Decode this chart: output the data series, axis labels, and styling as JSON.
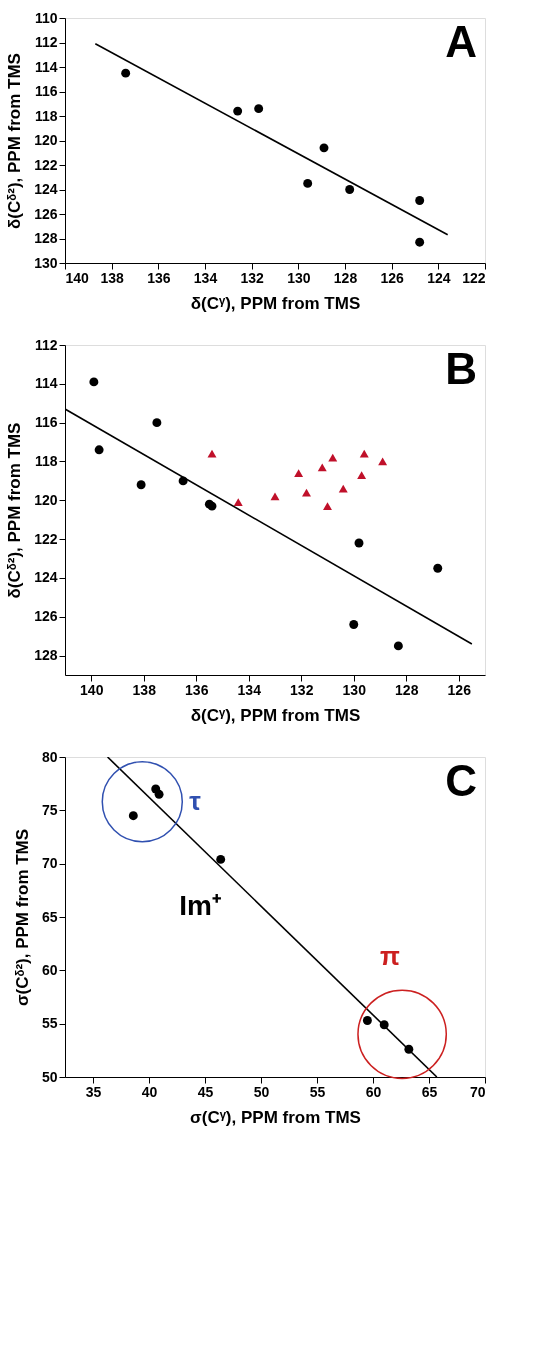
{
  "chart_data": [
    {
      "type": "scatter",
      "xlabel": "δ(Cᵞ), PPM from TMS",
      "ylabel": "δ(Cᵟ²), PPM from TMS",
      "xlim": [
        140,
        122
      ],
      "ylim": [
        130,
        110
      ],
      "xticks": [
        140,
        138,
        136,
        134,
        132,
        130,
        128,
        126,
        124,
        122
      ],
      "yticks": [
        110,
        112,
        114,
        116,
        118,
        120,
        122,
        124,
        126,
        128,
        130
      ],
      "grid": false,
      "annotations": [
        "A"
      ],
      "series": [
        {
          "color": "#000000",
          "marker": "circle",
          "x": [
            137.4,
            132.6,
            131.7,
            128.9,
            129.6,
            127.8,
            124.8,
            124.8
          ],
          "values": [
            114.5,
            117.6,
            117.4,
            120.6,
            123.5,
            124.0,
            124.9,
            128.3
          ]
        },
        {
          "type": "line",
          "color": "#000000",
          "line_style": "solid",
          "x": [
            138.7,
            123.6
          ],
          "values": [
            112.1,
            127.7
          ]
        }
      ]
    },
    {
      "type": "scatter",
      "xlabel": "δ(Cᵞ), PPM from TMS",
      "ylabel": "δ(Cᵟ²), PPM from TMS",
      "xlim": [
        141,
        125
      ],
      "ylim": [
        129,
        112
      ],
      "xticks": [
        140,
        138,
        136,
        134,
        132,
        130,
        128,
        126
      ],
      "yticks": [
        112,
        114,
        116,
        118,
        120,
        122,
        124,
        126,
        128
      ],
      "grid": false,
      "annotations": [
        "B"
      ],
      "series": [
        {
          "color": "#000000",
          "marker": "circle",
          "x": [
            139.9,
            139.7,
            138.1,
            137.5,
            136.5,
            135.5,
            135.4,
            129.8,
            130.0,
            128.3,
            126.8
          ],
          "values": [
            113.9,
            117.4,
            119.2,
            116.0,
            119.0,
            120.2,
            120.3,
            122.2,
            126.4,
            127.5,
            123.5
          ]
        },
        {
          "color": "#c0102a",
          "marker": "triangle",
          "x": [
            135.4,
            134.4,
            133.0,
            132.1,
            131.8,
            131.2,
            130.8,
            131.0,
            130.4,
            129.7,
            129.6,
            128.9
          ],
          "values": [
            117.6,
            120.1,
            119.8,
            118.6,
            119.6,
            118.3,
            117.8,
            120.3,
            119.4,
            118.7,
            117.6,
            118.0
          ]
        },
        {
          "type": "line",
          "color": "#000000",
          "line_style": "solid",
          "x": [
            141.0,
            125.5
          ],
          "values": [
            115.3,
            127.4
          ]
        }
      ]
    },
    {
      "type": "scatter",
      "xlabel": "σ(Cᵞ), PPM from TMS",
      "ylabel": "σ(Cᵟ²), PPM from TMS",
      "xlim": [
        32.5,
        70
      ],
      "ylim": [
        50,
        80
      ],
      "xticks": [
        35,
        40,
        45,
        50,
        55,
        60,
        65,
        70
      ],
      "yticks": [
        50,
        55,
        60,
        65,
        70,
        75,
        80
      ],
      "grid": false,
      "annotations": [
        "C",
        "τ",
        "π",
        "Im⁺"
      ],
      "series": [
        {
          "color": "#000000",
          "marker": "circle",
          "x": [
            38.6,
            40.6,
            40.9,
            46.4,
            59.5,
            61.0,
            63.2
          ],
          "values": [
            74.5,
            77.0,
            76.5,
            70.4,
            55.3,
            54.9,
            52.6
          ]
        },
        {
          "type": "line",
          "color": "#000000",
          "line_style": "solid",
          "x": [
            36.3,
            65.7
          ],
          "values": [
            80,
            50
          ]
        }
      ]
    }
  ]
}
